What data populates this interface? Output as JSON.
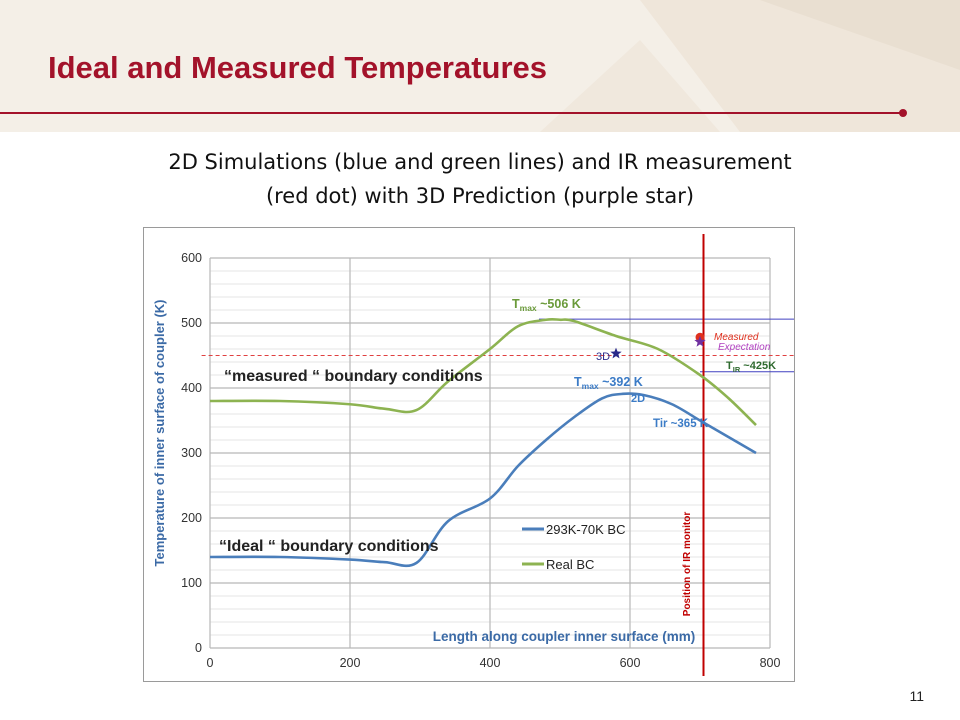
{
  "slide": {
    "title": "Ideal and Measured Temperatures",
    "subtitle_lines": [
      "2D Simulations (blue and green lines) and IR measurement",
      "(red dot) with 3D Prediction (purple star)"
    ],
    "page_number": "11",
    "colors": {
      "title": "#a3122a",
      "header_bg": "#f4efe7"
    }
  },
  "chart_data": {
    "type": "line",
    "xlabel": "Length along coupler inner surface (mm)",
    "ylabel": "Temperature of  inner surface of coupler (K)",
    "xlim": [
      0,
      800
    ],
    "ylim": [
      0,
      600
    ],
    "xticks": [
      0,
      200,
      400,
      600,
      800
    ],
    "yticks": [
      0,
      100,
      200,
      300,
      400,
      500,
      600
    ],
    "grid": true,
    "legend": "center-right",
    "series": [
      {
        "name": "293K-70K BC",
        "color": "#4a7ebb",
        "x": [
          0,
          100,
          200,
          250,
          295,
          340,
          400,
          440,
          480,
          520,
          560,
          590,
          620,
          660,
          700,
          740,
          780
        ],
        "y": [
          140,
          140,
          136,
          132,
          131,
          195,
          230,
          280,
          320,
          355,
          384,
          391,
          389,
          375,
          350,
          325,
          300
        ]
      },
      {
        "name": "Real BC",
        "color": "#8db351",
        "x": [
          0,
          100,
          200,
          250,
          295,
          340,
          400,
          440,
          480,
          500,
          520,
          580,
          640,
          700,
          740,
          780
        ],
        "y": [
          380,
          380,
          375,
          368,
          366,
          410,
          460,
          495,
          505,
          505,
          503,
          480,
          460,
          420,
          385,
          343
        ]
      }
    ],
    "markers": [
      {
        "label": "Measured",
        "type": "dot",
        "color": "#e0301e",
        "x": 700,
        "y": 478
      },
      {
        "label": "Expectation",
        "type": "star",
        "color": "#7030a0",
        "x": 700,
        "y": 471
      },
      {
        "label": "3D",
        "type": "star",
        "color": "#2a2a8a",
        "x": 580,
        "y": 453
      }
    ],
    "vertical_lines": [
      {
        "label": "Position of IR monitor",
        "color": "#c00000",
        "x": 705
      }
    ],
    "reference_lines": [
      {
        "color": "#e04040",
        "style": "dashed",
        "y": 450
      },
      {
        "color": "#4040c0",
        "style": "solid",
        "y": 506
      },
      {
        "color": "#4040c0",
        "style": "solid",
        "y": 425
      }
    ],
    "annotations": {
      "measured_bc": "“measured “ boundary conditions",
      "ideal_bc": "“Ideal “ boundary conditions",
      "tmax_green_main": "T",
      "tmax_green_sub": "max",
      "tmax_green_val": " ~506 K",
      "tmax_blue_main": "T",
      "tmax_blue_sub": "max",
      "tmax_blue_val": " ~392 K",
      "tir_main": "T",
      "tir_sub": "IR",
      "tir_val": " ~425K",
      "twod": "2D",
      "tir_blue": "Tir ~365 K"
    }
  }
}
